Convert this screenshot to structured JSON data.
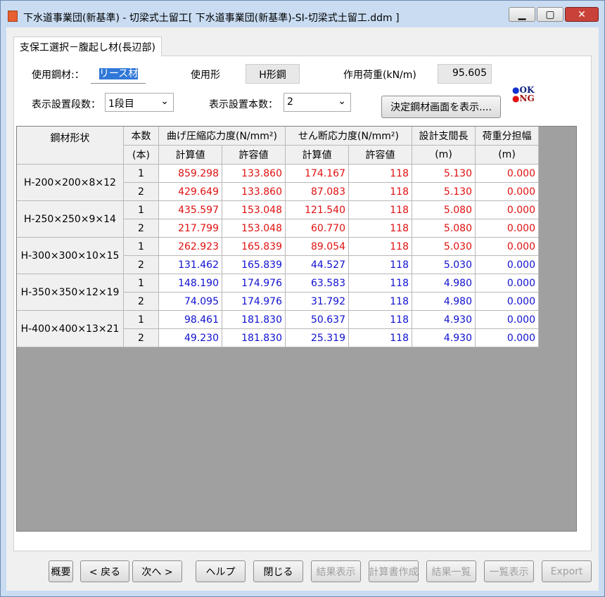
{
  "window": {
    "title": "下水道事業団(新基準) - 切梁式土留工[ 下水道事業団(新基準)-SI-切梁式土留工.ddm ]"
  },
  "tab": "支保工選択－腹起し材(長辺部)",
  "form": {
    "steel_label": "使用鋼材:：",
    "steel_value": "リース材",
    "shape_label": "使用形",
    "shape_value": "H形鋼",
    "load_label": "作用荷重(kN/m)",
    "load_value": "95.605",
    "stage_label": "表示設置段数：",
    "stage_value": "1段目",
    "count_label": "表示設置本数：",
    "count_value": "2",
    "show_button": "決定鋼材画面を表示....",
    "legend_ok": "OK",
    "legend_ng": "NG"
  },
  "table": {
    "headers": {
      "shape": "鋼材形状",
      "count": "本数",
      "count_unit": "(本)",
      "bending": "曲げ圧縮応力度(N/mm²)",
      "shear": "せん断応力度(N/mm²)",
      "calc1": "計算値",
      "allow1": "許容値",
      "calc2": "計算値",
      "allow2": "許容値",
      "span": "設計支間長",
      "span_unit": "(m)",
      "width": "荷重分担幅",
      "width_unit": "(m)"
    },
    "colors": {
      "ng": "#e01010",
      "ok": "#1010d0"
    },
    "groups": [
      {
        "shape": "H-200×200×8×12",
        "rows": [
          {
            "n": "1",
            "status": "ng",
            "values": [
              "859.298",
              "133.860",
              "174.167",
              "118",
              "5.130",
              "0.000"
            ]
          },
          {
            "n": "2",
            "status": "ng",
            "values": [
              "429.649",
              "133.860",
              "87.083",
              "118",
              "5.130",
              "0.000"
            ]
          }
        ]
      },
      {
        "shape": "H-250×250×9×14",
        "rows": [
          {
            "n": "1",
            "status": "ng",
            "values": [
              "435.597",
              "153.048",
              "121.540",
              "118",
              "5.080",
              "0.000"
            ]
          },
          {
            "n": "2",
            "status": "ng",
            "values": [
              "217.799",
              "153.048",
              "60.770",
              "118",
              "5.080",
              "0.000"
            ]
          }
        ]
      },
      {
        "shape": "H-300×300×10×15",
        "rows": [
          {
            "n": "1",
            "status": "ng",
            "values": [
              "262.923",
              "165.839",
              "89.054",
              "118",
              "5.030",
              "0.000"
            ]
          },
          {
            "n": "2",
            "status": "ok",
            "values": [
              "131.462",
              "165.839",
              "44.527",
              "118",
              "5.030",
              "0.000"
            ]
          }
        ]
      },
      {
        "shape": "H-350×350×12×19",
        "rows": [
          {
            "n": "1",
            "status": "ok",
            "values": [
              "148.190",
              "174.976",
              "63.583",
              "118",
              "4.980",
              "0.000"
            ]
          },
          {
            "n": "2",
            "status": "ok",
            "values": [
              "74.095",
              "174.976",
              "31.792",
              "118",
              "4.980",
              "0.000"
            ]
          }
        ]
      },
      {
        "shape": "H-400×400×13×21",
        "rows": [
          {
            "n": "1",
            "status": "ok",
            "values": [
              "98.461",
              "181.830",
              "50.637",
              "118",
              "4.930",
              "0.000"
            ]
          },
          {
            "n": "2",
            "status": "ok",
            "values": [
              "49.230",
              "181.830",
              "25.319",
              "118",
              "4.930",
              "0.000"
            ]
          }
        ]
      }
    ]
  },
  "buttons": [
    {
      "label": "概要",
      "enabled": true
    },
    {
      "label": "< 戻る",
      "enabled": true
    },
    {
      "label": "次へ >",
      "enabled": true
    },
    {
      "label": "ヘルプ",
      "enabled": true
    },
    {
      "label": "閉じる",
      "enabled": true
    },
    {
      "label": "結果表示",
      "enabled": false
    },
    {
      "label": "計算書作成",
      "enabled": false
    },
    {
      "label": "結果一覧",
      "enabled": false
    },
    {
      "label": "一覧表示",
      "enabled": false
    },
    {
      "label": "Export",
      "enabled": false
    }
  ]
}
